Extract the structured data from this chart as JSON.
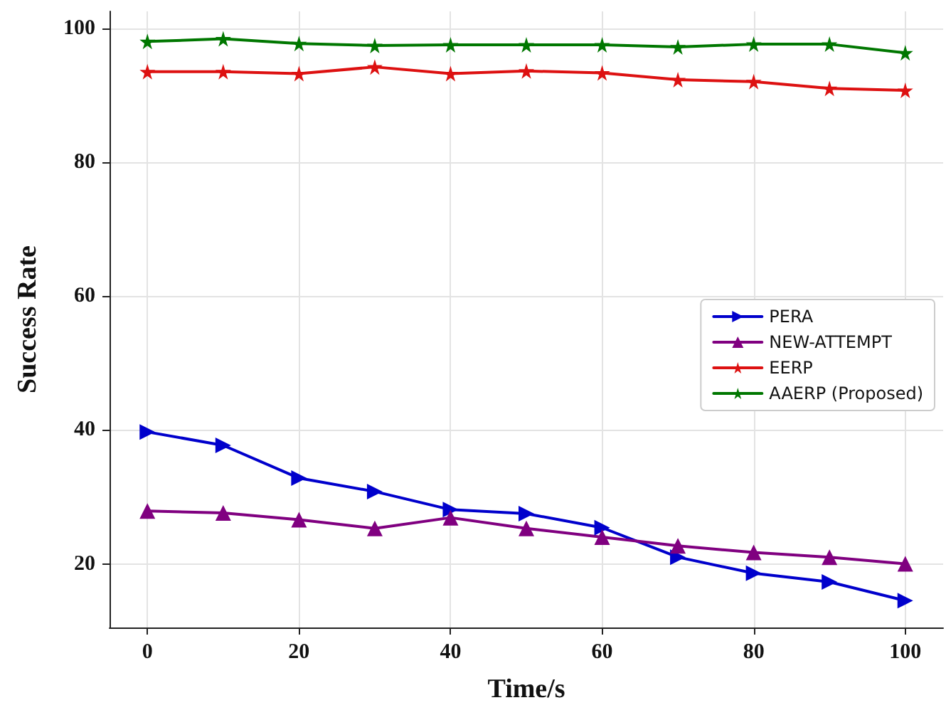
{
  "chart_data": {
    "type": "line",
    "xlabel": "Time/s",
    "ylabel": "Success Rate",
    "x": [
      0,
      10,
      20,
      30,
      40,
      50,
      60,
      70,
      80,
      90,
      100
    ],
    "series": [
      {
        "name": "PERA",
        "color": "#0000cc",
        "marker": "triangle-right",
        "values": [
          39.7,
          37.7,
          32.8,
          30.8,
          28.1,
          27.5,
          25.4,
          21,
          18.6,
          17.3,
          14.5
        ]
      },
      {
        "name": "NEW-ATTEMPT",
        "color": "#800080",
        "marker": "triangle",
        "values": [
          27.9,
          27.6,
          26.6,
          25.3,
          26.9,
          25.3,
          24,
          22.7,
          21.7,
          21,
          20
        ]
      },
      {
        "name": "EERP",
        "color": "#dd1111",
        "marker": "star",
        "values": [
          93.5,
          93.5,
          93.2,
          94.2,
          93.2,
          93.6,
          93.3,
          92.3,
          92,
          91,
          90.7
        ]
      },
      {
        "name": "AAERP (Proposed)",
        "color": "#007700",
        "marker": "star",
        "values": [
          98,
          98.4,
          97.7,
          97.4,
          97.5,
          97.5,
          97.5,
          97.2,
          97.6,
          97.6,
          96.3
        ]
      }
    ],
    "xlim": [
      -5,
      105
    ],
    "xticks": [
      0,
      20,
      40,
      60,
      80,
      100
    ],
    "ylim": [
      10.5,
      102.5
    ],
    "yticks": [
      20,
      40,
      60,
      80,
      100
    ],
    "grid": true,
    "legend": "right",
    "line_style": "solid"
  }
}
